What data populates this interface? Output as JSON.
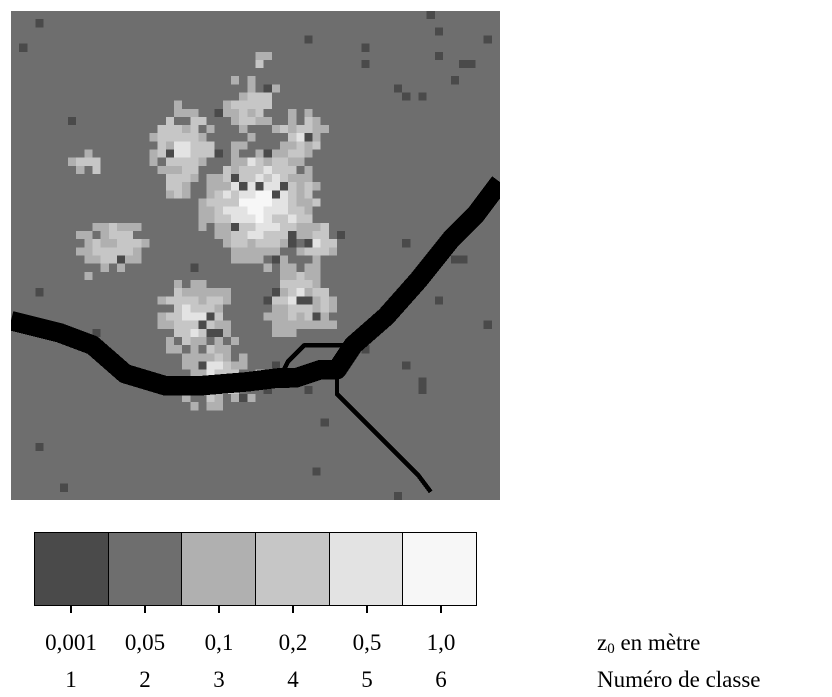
{
  "figure": {
    "map_caption": "",
    "grid": {
      "cols": 60,
      "rows": 60
    }
  },
  "legend": {
    "classes": [
      {
        "z0": "0,001",
        "num": "1",
        "color": "#4a4a4a"
      },
      {
        "z0": "0,05",
        "num": "2",
        "color": "#6e6e6e"
      },
      {
        "z0": "0,1",
        "num": "3",
        "color": "#b0b0b0"
      },
      {
        "z0": "0,2",
        "num": "4",
        "color": "#c6c6c6"
      },
      {
        "z0": "0,5",
        "num": "5",
        "color": "#e3e3e3"
      },
      {
        "z0": "1,0",
        "num": "6",
        "color": "#f7f7f7"
      }
    ],
    "water_color": "#000000",
    "z0_label_sym": "z",
    "z0_label_sub": "0",
    "z0_label_rest": " en mètre",
    "class_label": "Numéro de classe"
  }
}
